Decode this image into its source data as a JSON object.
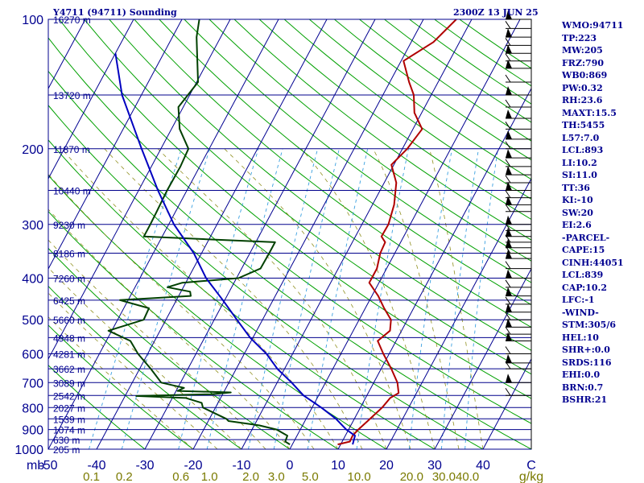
{
  "header": {
    "title": "Y4711 (94711) Sounding",
    "valid_time": "2300Z 13 JUN 25"
  },
  "indices": [
    "WMO:94711",
    "TP:223",
    "MW:205",
    "FRZ:790",
    "WB0:869",
    "PW:0.32",
    "RH:23.6",
    "MAXT:15.5",
    "TH:5455",
    "L57:7.0",
    "LCL:893",
    "LI:10.2",
    "SI:11.0",
    "TT:36",
    "KI:-10",
    "SW:20",
    "EI:2.6",
    "-PARCEL-",
    "CAPE:15",
    "CINH:44051",
    "LCL:839",
    "CAP:10.2",
    "LFC:-1",
    "-WIND-",
    "STM:305/6",
    "HEL:10",
    "SHR+:0.0",
    "SRDS:116",
    "EHI:0.0",
    "BRN:0.7",
    "BSHR:21"
  ],
  "colors": {
    "isobar": "#00008c",
    "isotherm": "#000090",
    "dry_adiabat": "#00a000",
    "moist_adiabat": "#909020",
    "mixing_ratio": "#3aa0e0",
    "temperature": "#b00000",
    "dewpoint": "#004000",
    "parcel": "#0000c0",
    "label": "#000090",
    "mixing_label": "#7a7a00"
  },
  "chart_data": {
    "type": "skew-t log-p sounding",
    "y_axis": {
      "label": "mb",
      "scale": "log",
      "range": [
        1000,
        100
      ],
      "ticks": [
        100,
        200,
        300,
        400,
        500,
        600,
        700,
        800,
        900,
        1000
      ]
    },
    "x_axis": {
      "label": "C",
      "range": [
        -50,
        50
      ],
      "ticks": [
        -50,
        -40,
        -30,
        -20,
        -10,
        0,
        10,
        20,
        30,
        40
      ]
    },
    "mixing_ratio_axis": {
      "label": "g/kg",
      "ticks": [
        "0.1",
        "0.2",
        "0.6",
        "1.0",
        "2.0",
        "3.0",
        "5.0",
        "10.0",
        "20.0",
        "30.0",
        "40.0"
      ]
    },
    "heights": [
      {
        "p": 100,
        "label": "16270 m"
      },
      {
        "p": 150,
        "label": "13720 m"
      },
      {
        "p": 200,
        "label": "11870 m"
      },
      {
        "p": 250,
        "label": "10440 m"
      },
      {
        "p": 300,
        "label": "9230 m"
      },
      {
        "p": 350,
        "label": "8186 m"
      },
      {
        "p": 400,
        "label": "7260 m"
      },
      {
        "p": 450,
        "label": "6425 m"
      },
      {
        "p": 500,
        "label": "5660 m"
      },
      {
        "p": 550,
        "label": "4948 m"
      },
      {
        "p": 600,
        "label": "4281 m"
      },
      {
        "p": 650,
        "label": "3662 m"
      },
      {
        "p": 700,
        "label": "3089 m"
      },
      {
        "p": 750,
        "label": "2542 m"
      },
      {
        "p": 800,
        "label": "2027 m"
      },
      {
        "p": 850,
        "label": "1539 m"
      },
      {
        "p": 900,
        "label": "1074 m"
      },
      {
        "p": 950,
        "label": "630 m"
      },
      {
        "p": 1000,
        "label": "205 m"
      }
    ],
    "series": [
      {
        "id": "temperature",
        "points": [
          [
            975,
            9.4
          ],
          [
            960,
            11.6
          ],
          [
            930,
            11.5
          ],
          [
            900,
            12.0
          ],
          [
            860,
            13.0
          ],
          [
            800,
            14.5
          ],
          [
            760,
            15.1
          ],
          [
            740,
            16.3
          ],
          [
            700,
            14.9
          ],
          [
            650,
            12.1
          ],
          [
            600,
            8.8
          ],
          [
            560,
            6.2
          ],
          [
            530,
            7.6
          ],
          [
            500,
            6.6
          ],
          [
            470,
            3.9
          ],
          [
            440,
            1.3
          ],
          [
            410,
            -2.0
          ],
          [
            400,
            -2.0
          ],
          [
            380,
            -2.0
          ],
          [
            350,
            -3.0
          ],
          [
            330,
            -3.2
          ],
          [
            320,
            -4.6
          ],
          [
            300,
            -4.5
          ],
          [
            270,
            -5.5
          ],
          [
            240,
            -7.5
          ],
          [
            218,
            -10.5
          ],
          [
            200,
            -9.0
          ],
          [
            180,
            -8.1
          ],
          [
            165,
            -11.5
          ],
          [
            150,
            -13.6
          ],
          [
            140,
            -16.0
          ],
          [
            125,
            -19.5
          ],
          [
            113,
            -15.4
          ],
          [
            100,
            -13.2
          ]
        ]
      },
      {
        "id": "dewpoint",
        "points": [
          [
            975,
            -0.5
          ],
          [
            960,
            -1.8
          ],
          [
            930,
            -2.0
          ],
          [
            900,
            -4.9
          ],
          [
            880,
            -9.0
          ],
          [
            860,
            -15.8
          ],
          [
            850,
            -16.5
          ],
          [
            800,
            -22.6
          ],
          [
            780,
            -23.4
          ],
          [
            760,
            -27.2
          ],
          [
            752,
            -37.7
          ],
          [
            745,
            -22.4
          ],
          [
            738,
            -18.5
          ],
          [
            732,
            -29.7
          ],
          [
            720,
            -28.7
          ],
          [
            700,
            -34.0
          ],
          [
            650,
            -37.7
          ],
          [
            600,
            -42.0
          ],
          [
            560,
            -45.0
          ],
          [
            530,
            -50.7
          ],
          [
            500,
            -44.6
          ],
          [
            470,
            -44.8
          ],
          [
            450,
            -51.7
          ],
          [
            440,
            -37.5
          ],
          [
            430,
            -38.1
          ],
          [
            420,
            -43.3
          ],
          [
            410,
            -40.7
          ],
          [
            400,
            -29.6
          ],
          [
            380,
            -26.1
          ],
          [
            350,
            -26.0
          ],
          [
            330,
            -26.0
          ],
          [
            320,
            -53.8
          ],
          [
            300,
            -53.8
          ],
          [
            280,
            -53.9
          ],
          [
            250,
            -54.1
          ],
          [
            220,
            -54.0
          ],
          [
            200,
            -54.3
          ],
          [
            180,
            -58.3
          ],
          [
            160,
            -61.0
          ],
          [
            140,
            -59.7
          ],
          [
            110,
            -65.0
          ],
          [
            100,
            -66.4
          ]
        ]
      },
      {
        "id": "parcel",
        "points": [
          [
            975,
            12.5
          ],
          [
            930,
            12.0
          ],
          [
            900,
            9.5
          ],
          [
            850,
            6.2
          ],
          [
            800,
            1.9
          ],
          [
            750,
            -3.1
          ],
          [
            700,
            -7.0
          ],
          [
            650,
            -11.5
          ],
          [
            600,
            -15.4
          ],
          [
            550,
            -20.6
          ],
          [
            500,
            -25.3
          ],
          [
            450,
            -30.4
          ],
          [
            400,
            -36.3
          ],
          [
            350,
            -41.6
          ],
          [
            300,
            -48.9
          ],
          [
            250,
            -56.0
          ],
          [
            200,
            -64.0
          ],
          [
            150,
            -74.0
          ],
          [
            120,
            -80.0
          ]
        ]
      }
    ],
    "wind_profile_pressures": [
      100,
      105,
      110,
      115,
      120,
      125,
      130,
      140,
      150,
      160,
      170,
      180,
      190,
      200,
      210,
      220,
      230,
      240,
      250,
      260,
      270,
      280,
      300,
      310,
      320,
      330,
      340,
      350,
      360,
      380,
      400,
      420,
      440,
      460,
      480,
      500,
      520,
      540,
      560,
      600,
      630,
      650,
      700,
      750
    ]
  }
}
